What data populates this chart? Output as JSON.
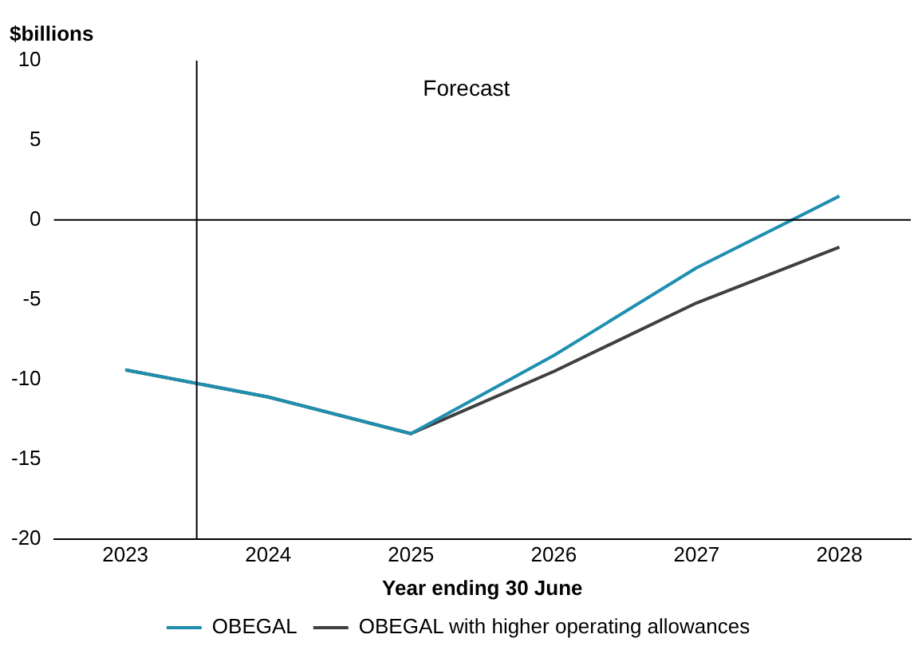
{
  "chart_data": {
    "type": "line",
    "ylabel": "$billions",
    "xlabel": "Year ending 30 June",
    "x": [
      2023,
      2024,
      2025,
      2026,
      2027,
      2028
    ],
    "xlim": [
      2022.5,
      2028.5
    ],
    "xticks": [
      2023,
      2024,
      2025,
      2026,
      2027,
      2028
    ],
    "ylim": [
      -20,
      10
    ],
    "yticks": [
      -20,
      -15,
      -10,
      -5,
      0,
      5,
      10
    ],
    "series": [
      {
        "name": "OBEGAL",
        "color": "#1f8fb0",
        "values": [
          -9.4,
          -11.1,
          -13.4,
          -8.5,
          -3.0,
          1.5
        ]
      },
      {
        "name": "OBEGAL with higher operating allowances",
        "color": "#404040",
        "values": [
          -9.4,
          -11.1,
          -13.4,
          -9.5,
          -5.2,
          -1.7
        ]
      }
    ],
    "ref_lines": [
      {
        "axis": "x",
        "value": 2023.5,
        "color": "#000000"
      },
      {
        "axis": "y",
        "value": 0,
        "color": "#000000"
      }
    ],
    "annotations": [
      "Forecast"
    ],
    "grid": false,
    "legend": "bottom",
    "marker": "none",
    "line_style": "solid"
  }
}
